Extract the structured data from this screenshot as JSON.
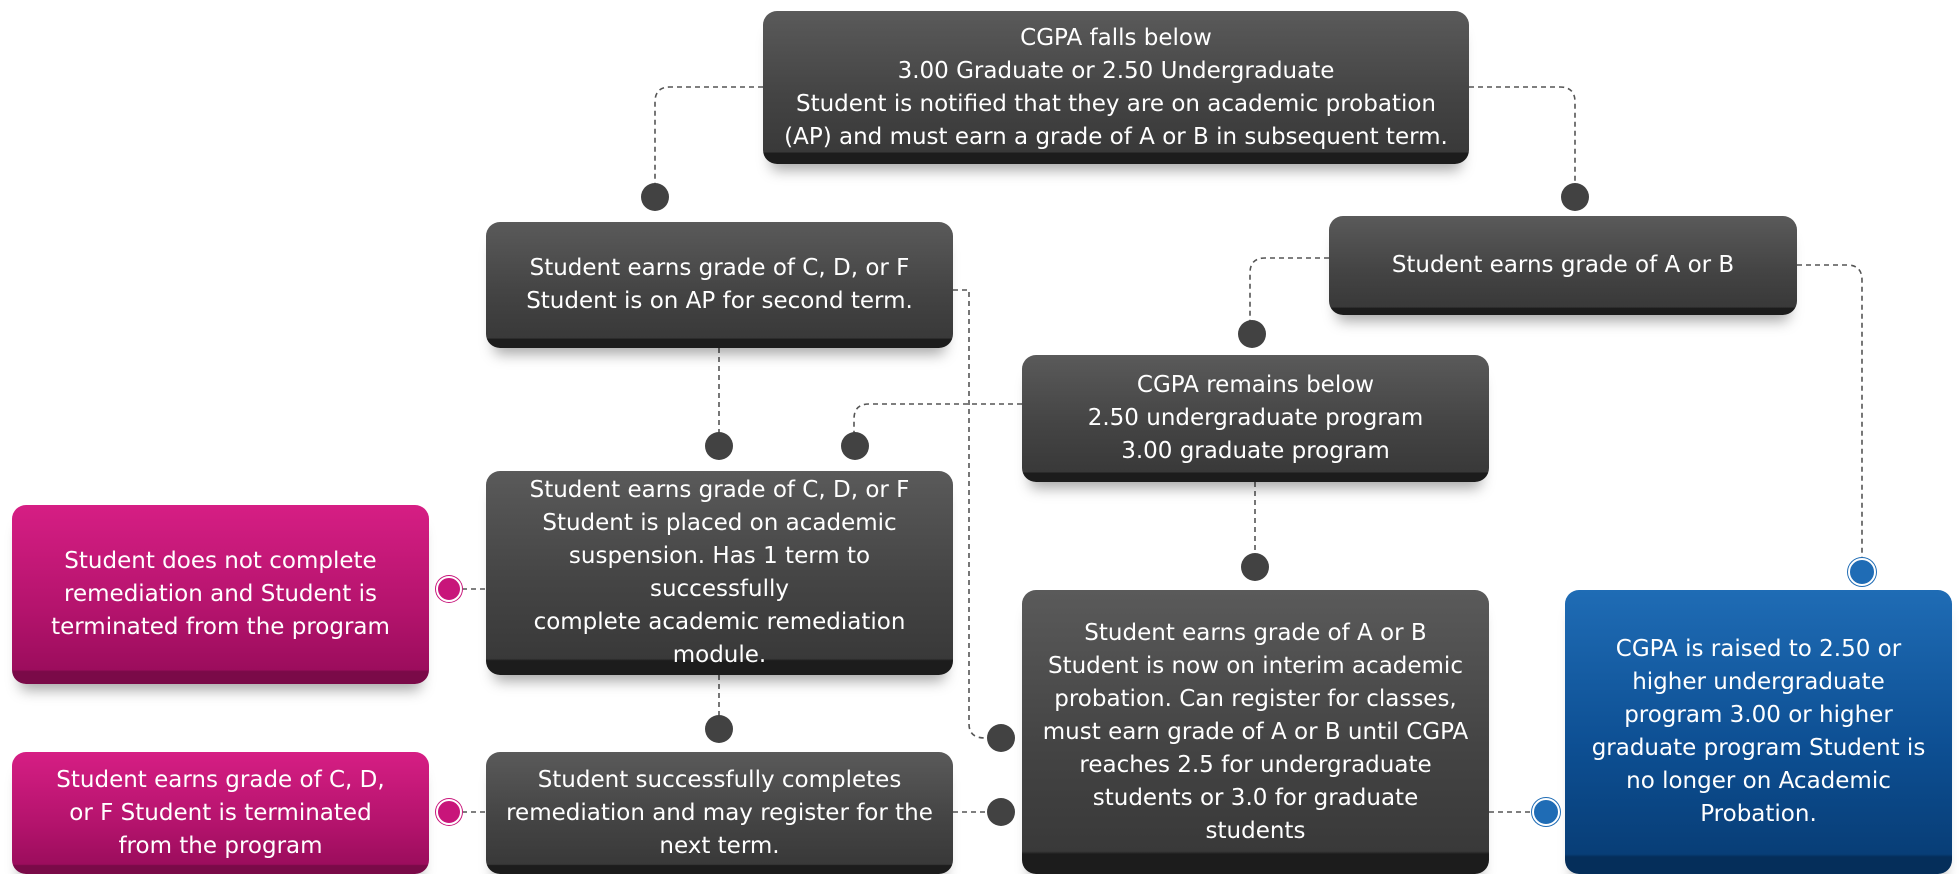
{
  "nodes": {
    "probation_notice": "CGPA falls below\n3.00 Graduate or 2.50 Undergraduate\nStudent is notified that they are on academic probation\n(AP) and must earn a grade of  A or B in subsequent term.",
    "second_term_ap": "Student earns grade of C, D, or F\nStudent is on AP for second term.",
    "earns_a_or_b": "Student earns grade of A or B",
    "cgpa_remains_below": "CGPA remains below\n2.50 undergraduate program\n3.00 graduate program",
    "academic_suspension": "Student earns grade of C, D, or F\nStudent is placed on academic\nsuspension. Has 1 term to successfully\ncomplete academic remediation\nmodule.",
    "no_remediation_terminated": "Student does not complete\nremediation and Student is\nterminated from the program",
    "interim_probation": "Student earns grade of A or B\nStudent is now on interim academic\nprobation. Can register for classes,\nmust earn grade of  A or B until CGPA\nreaches 2.5 for undergraduate\nstudents  or  3.0 for graduate\nstudents",
    "cgpa_raised": "CGPA is raised to 2.50 or\nhigher undergraduate\nprogram 3.00 or higher\ngraduate program Student is\nno longer on Academic\nProbation.",
    "grade_cdf_terminated": "Student earns grade of C, D,\nor F Student is terminated\nfrom the program",
    "completes_remediation": "Student successfully completes\nremediation and may register for the\nnext term."
  },
  "colors": {
    "dark_box": "#444444",
    "termination_box": "#b3136c",
    "success_box": "#0d4f93",
    "connector": "#555555"
  }
}
